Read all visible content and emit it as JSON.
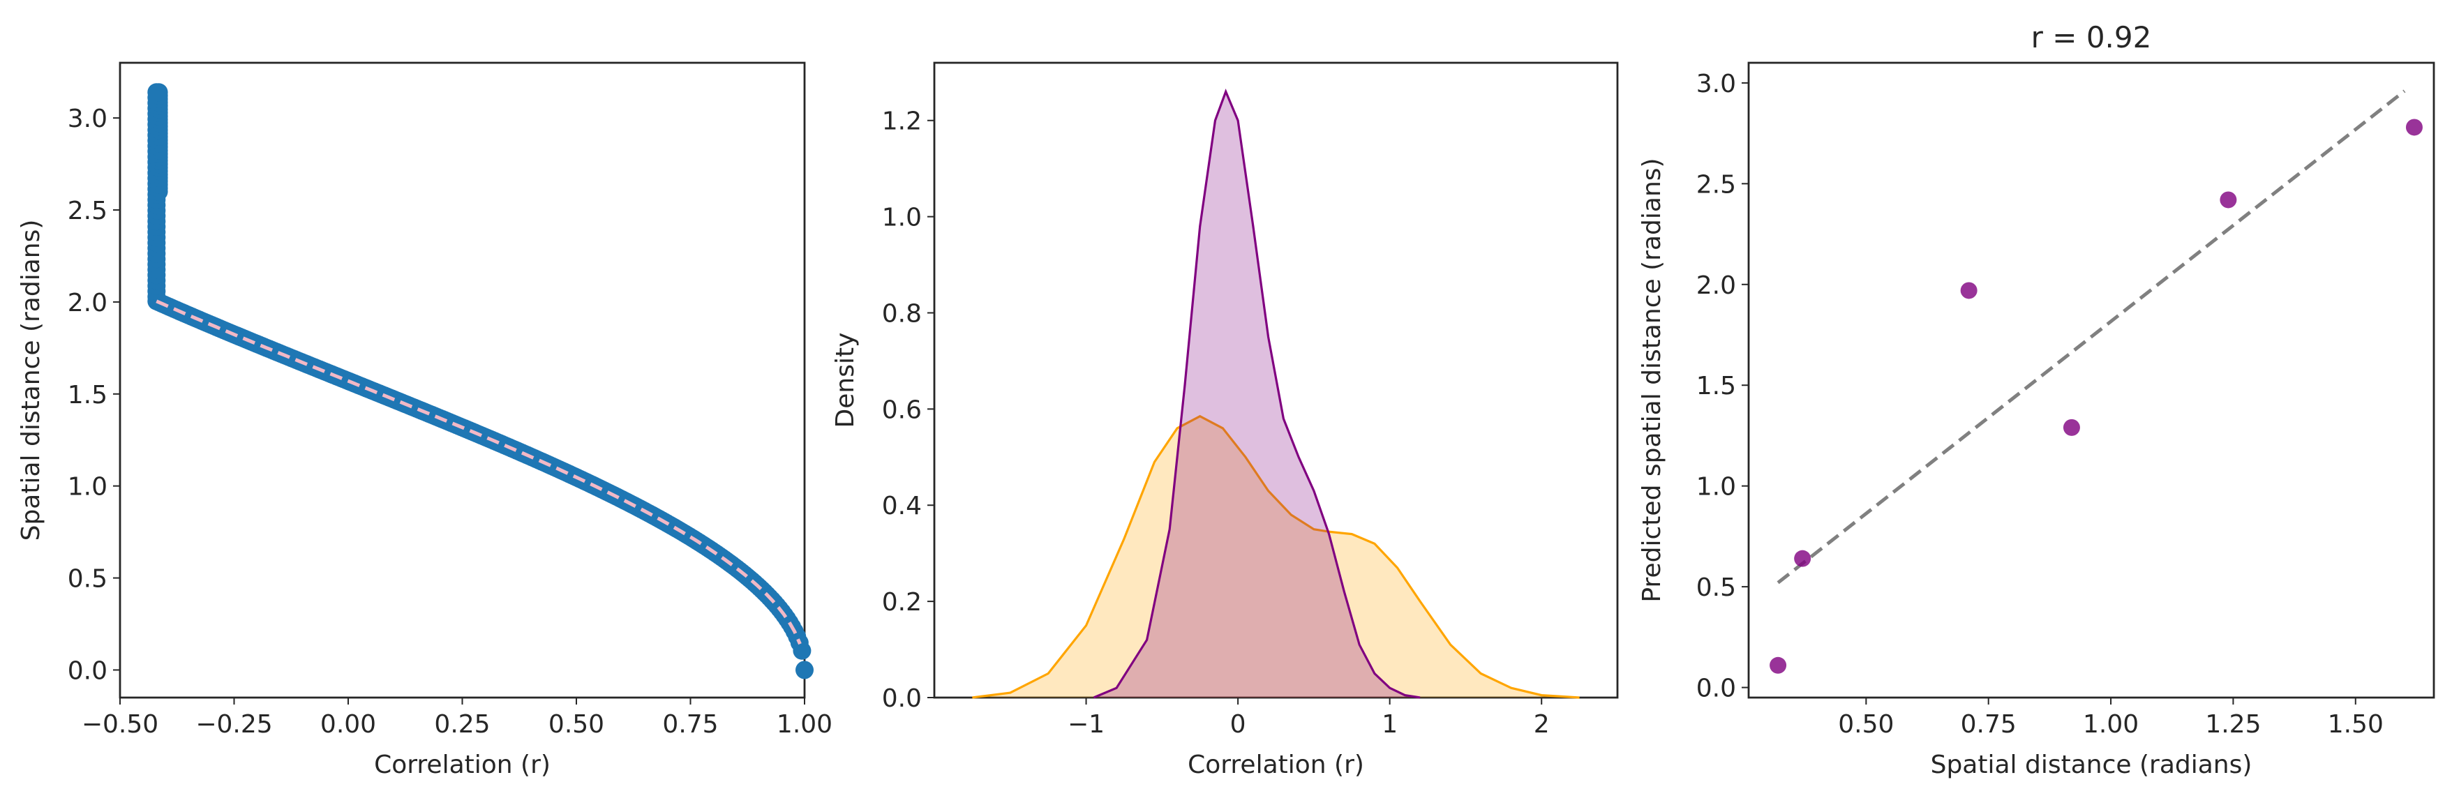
{
  "chart_data": [
    {
      "type": "scatter",
      "xlabel": "Correlation (r)",
      "ylabel": "Spatial distance (radians)",
      "xlim": [
        -0.5,
        1.0
      ],
      "ylim": [
        -0.15,
        3.3
      ],
      "xticks": [
        -0.5,
        -0.25,
        0.0,
        0.25,
        0.5,
        0.75,
        1.0
      ],
      "xtick_labels": [
        "−0.50",
        "−0.25",
        "0.00",
        "0.25",
        "0.50",
        "0.75",
        "1.00"
      ],
      "yticks": [
        0.0,
        0.5,
        1.0,
        1.5,
        2.0,
        2.5,
        3.0
      ],
      "ytick_labels": [
        "0.0",
        "0.5",
        "1.0",
        "1.5",
        "2.0",
        "2.5",
        "3.0"
      ],
      "grid": false,
      "series": [
        {
          "kind": "points",
          "color": "#1f77b4",
          "relation": "y = arccos(x)",
          "x_range": [
            -0.42,
            1.0
          ]
        },
        {
          "kind": "fit-line",
          "color": "#f2b8c6",
          "style": "dashed",
          "relation": "y = arccos(x)",
          "x_range": [
            -0.42,
            0.99
          ]
        }
      ]
    },
    {
      "type": "area",
      "xlabel": "Correlation (r)",
      "ylabel": "Density",
      "xlim": [
        -2.0,
        2.5
      ],
      "ylim": [
        0.0,
        1.32
      ],
      "xticks": [
        -1,
        0,
        1,
        2
      ],
      "xtick_labels": [
        "−1",
        "0",
        "1",
        "2"
      ],
      "yticks": [
        0.0,
        0.2,
        0.4,
        0.6,
        0.8,
        1.0,
        1.2
      ],
      "ytick_labels": [
        "0.0",
        "0.2",
        "0.4",
        "0.6",
        "0.8",
        "1.0",
        "1.2"
      ],
      "grid": false,
      "series": [
        {
          "color": "#800080",
          "fill": "#dfbfe0",
          "x": [
            -0.95,
            -0.8,
            -0.6,
            -0.45,
            -0.35,
            -0.25,
            -0.15,
            -0.08,
            0.0,
            0.1,
            0.2,
            0.3,
            0.4,
            0.5,
            0.6,
            0.7,
            0.8,
            0.9,
            1.0,
            1.1,
            1.2
          ],
          "y": [
            0.0,
            0.02,
            0.12,
            0.35,
            0.65,
            0.98,
            1.2,
            1.26,
            1.2,
            0.98,
            0.75,
            0.58,
            0.5,
            0.43,
            0.34,
            0.22,
            0.11,
            0.05,
            0.02,
            0.005,
            0.0
          ]
        },
        {
          "color": "#ffa500",
          "fill": "#fde3b4",
          "x": [
            -1.75,
            -1.5,
            -1.25,
            -1.0,
            -0.75,
            -0.55,
            -0.4,
            -0.25,
            -0.1,
            0.05,
            0.2,
            0.35,
            0.5,
            0.6,
            0.75,
            0.9,
            1.05,
            1.2,
            1.4,
            1.6,
            1.8,
            2.0,
            2.25
          ],
          "y": [
            0.0,
            0.01,
            0.05,
            0.15,
            0.33,
            0.49,
            0.56,
            0.585,
            0.56,
            0.5,
            0.43,
            0.38,
            0.35,
            0.345,
            0.34,
            0.32,
            0.27,
            0.2,
            0.11,
            0.05,
            0.02,
            0.005,
            0.0
          ]
        }
      ]
    },
    {
      "type": "scatter",
      "title": "r = 0.92",
      "xlabel": "Spatial distance (radians)",
      "ylabel": "Predicted spatial distance (radians)",
      "xlim": [
        0.26,
        1.66
      ],
      "ylim": [
        -0.05,
        3.1
      ],
      "xticks": [
        0.5,
        0.75,
        1.0,
        1.25,
        1.5
      ],
      "xtick_labels": [
        "0.50",
        "0.75",
        "1.00",
        "1.25",
        "1.50"
      ],
      "yticks": [
        0.0,
        0.5,
        1.0,
        1.5,
        2.0,
        2.5,
        3.0
      ],
      "ytick_labels": [
        "0.0",
        "0.5",
        "1.0",
        "1.5",
        "2.0",
        "2.5",
        "3.0"
      ],
      "grid": false,
      "points": {
        "color": "#800080",
        "x": [
          0.32,
          0.37,
          0.71,
          0.92,
          1.24,
          1.62
        ],
        "y": [
          0.11,
          0.64,
          1.97,
          1.29,
          2.42,
          2.78
        ]
      },
      "fit_line": {
        "color": "#808080",
        "style": "dashed",
        "x": [
          0.32,
          1.6
        ],
        "y": [
          0.52,
          2.96
        ]
      }
    }
  ]
}
